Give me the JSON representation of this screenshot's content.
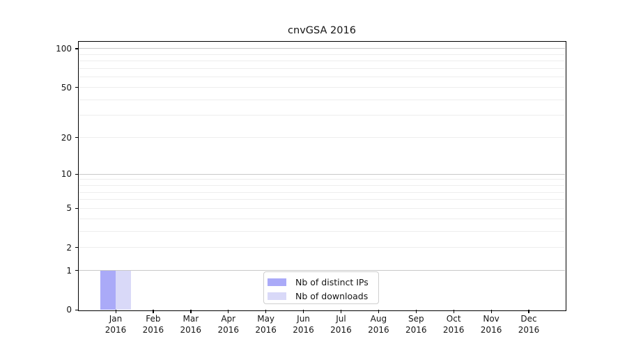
{
  "title": "cnvGSA 2016",
  "chart_data": {
    "type": "bar",
    "title": "cnvGSA 2016",
    "categories": [
      "Jan",
      "Feb",
      "Mar",
      "Apr",
      "May",
      "Jun",
      "Jul",
      "Aug",
      "Sep",
      "Oct",
      "Nov",
      "Dec"
    ],
    "category_year": "2016",
    "series": [
      {
        "name": "Nb of distinct IPs",
        "color": "#aaaaf8",
        "values": [
          1,
          0,
          0,
          0,
          0,
          0,
          0,
          0,
          0,
          0,
          0,
          0
        ]
      },
      {
        "name": "Nb of downloads",
        "color": "#d9d9f8",
        "values": [
          1,
          0,
          0,
          0,
          0,
          0,
          0,
          0,
          0,
          0,
          0,
          0
        ]
      }
    ],
    "y_axis": {
      "scale": "log10(1+v)",
      "tick_values": [
        0,
        1,
        2,
        5,
        10,
        20,
        50,
        100
      ],
      "tick_labels": [
        "0",
        "1",
        "2",
        "5",
        "10",
        "20",
        "50",
        "100"
      ],
      "range": [
        0,
        113.2
      ],
      "major_gridlines": [
        1,
        10,
        100
      ],
      "minor_gridlines": [
        2,
        3,
        4,
        5,
        6,
        7,
        8,
        9,
        20,
        30,
        40,
        50,
        60,
        70,
        80,
        90
      ]
    },
    "legend": {
      "position": "bottom-center"
    },
    "grid": "horizontal-only",
    "colors": {
      "background": "#ffffff",
      "axis": "#000000",
      "text": "#141414",
      "major_grid": "#c9c9c9",
      "minor_grid": "#ededed",
      "legend_border": "#cfcfcf"
    }
  }
}
